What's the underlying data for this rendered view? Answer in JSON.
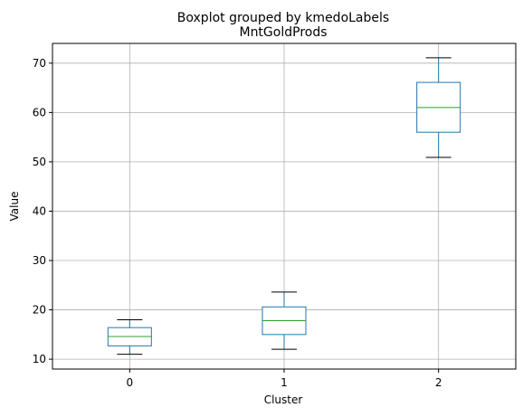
{
  "chart_data": {
    "type": "boxplot",
    "suptitle": "Boxplot grouped by kmedoLabels",
    "title": "MntGoldProds",
    "xlabel": "Cluster",
    "ylabel": "Value",
    "categories": [
      "0",
      "1",
      "2"
    ],
    "boxes": [
      {
        "category": "0",
        "whisker_low": 11.0,
        "q1": 12.7,
        "median": 14.6,
        "q3": 16.4,
        "whisker_high": 18.0
      },
      {
        "category": "1",
        "whisker_low": 12.0,
        "q1": 15.0,
        "median": 17.8,
        "q3": 20.6,
        "whisker_high": 23.6
      },
      {
        "category": "2",
        "whisker_low": 50.9,
        "q1": 56.0,
        "median": 61.0,
        "q3": 66.1,
        "whisker_high": 71.1
      }
    ],
    "yticks": [
      10,
      20,
      30,
      40,
      50,
      60,
      70
    ],
    "ylim": [
      8.0,
      74.0
    ],
    "grid": true,
    "colors": {
      "box": "#1f77b4",
      "median": "#2ca02c",
      "whisker": "#000000",
      "grid": "#b0b0b0"
    }
  }
}
